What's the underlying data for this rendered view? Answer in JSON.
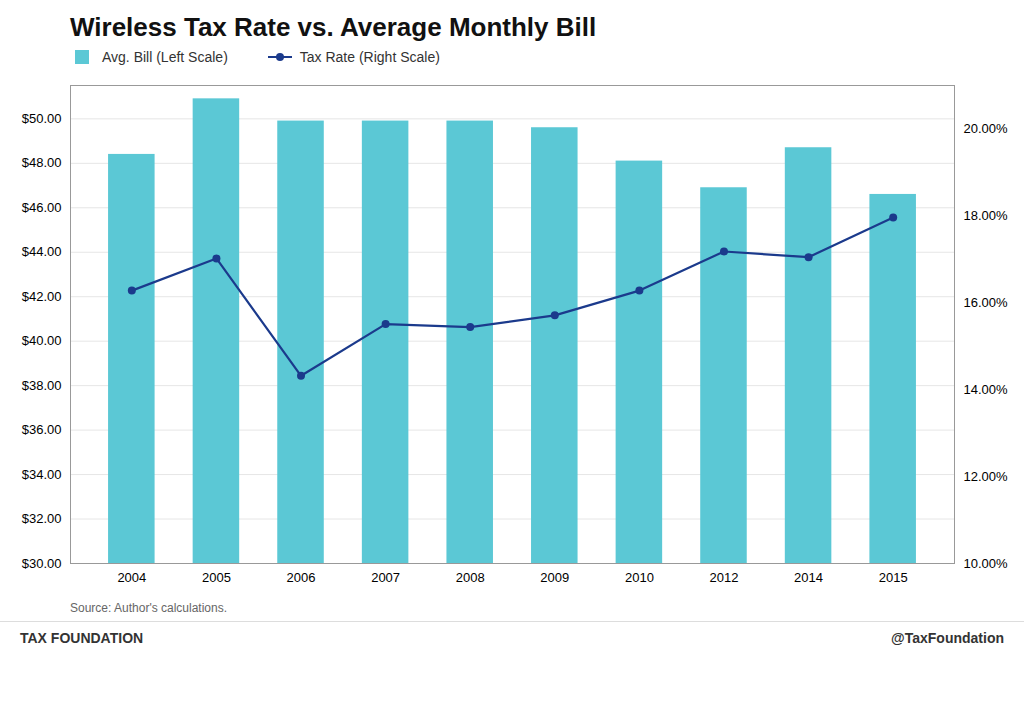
{
  "chart_data": {
    "type": "bar",
    "title": "Wireless Tax Rate vs. Average Monthly Bill",
    "categories": [
      "2004",
      "2005",
      "2006",
      "2007",
      "2008",
      "2009",
      "2010",
      "2012",
      "2014",
      "2015"
    ],
    "series": [
      {
        "name": "Avg. Bill (Left Scale)",
        "type": "bar",
        "color": "#5BC8D5",
        "values": [
          48.4,
          50.9,
          49.9,
          49.9,
          49.9,
          49.6,
          48.1,
          46.9,
          48.7,
          46.6
        ]
      },
      {
        "name": "Tax Rate (Right Scale)",
        "type": "line",
        "axis": "y2",
        "color": "#1B3A8C",
        "marker": "circle",
        "values": [
          16.28,
          17.02,
          14.32,
          15.51,
          15.44,
          15.71,
          16.28,
          17.18,
          17.05,
          17.96
        ]
      }
    ],
    "ylim": [
      30,
      51.5
    ],
    "yticks": [
      {
        "value": 30,
        "label": "$30.00"
      },
      {
        "value": 32,
        "label": "$32.00"
      },
      {
        "value": 34,
        "label": "$34.00"
      },
      {
        "value": 36,
        "label": "$36.00"
      },
      {
        "value": 38,
        "label": "$38.00"
      },
      {
        "value": 40,
        "label": "$40.00"
      },
      {
        "value": 42,
        "label": "$42.00"
      },
      {
        "value": 44,
        "label": "$44.00"
      },
      {
        "value": 46,
        "label": "$46.00"
      },
      {
        "value": 48,
        "label": "$48.00"
      },
      {
        "value": 50,
        "label": "$50.00"
      }
    ],
    "y2lim": [
      10,
      21
    ],
    "y2ticks": [
      {
        "value": 10,
        "label": "10.00%"
      },
      {
        "value": 12,
        "label": "12.00%"
      },
      {
        "value": 14,
        "label": "14.00%"
      },
      {
        "value": 16,
        "label": "16.00%"
      },
      {
        "value": 18,
        "label": "18.00%"
      },
      {
        "value": 20,
        "label": "20.00%"
      }
    ],
    "grid": true,
    "legend": "top",
    "annotations": [
      "Source: Author's calculations.",
      "TAX FOUNDATION",
      "@TaxFoundation"
    ]
  }
}
